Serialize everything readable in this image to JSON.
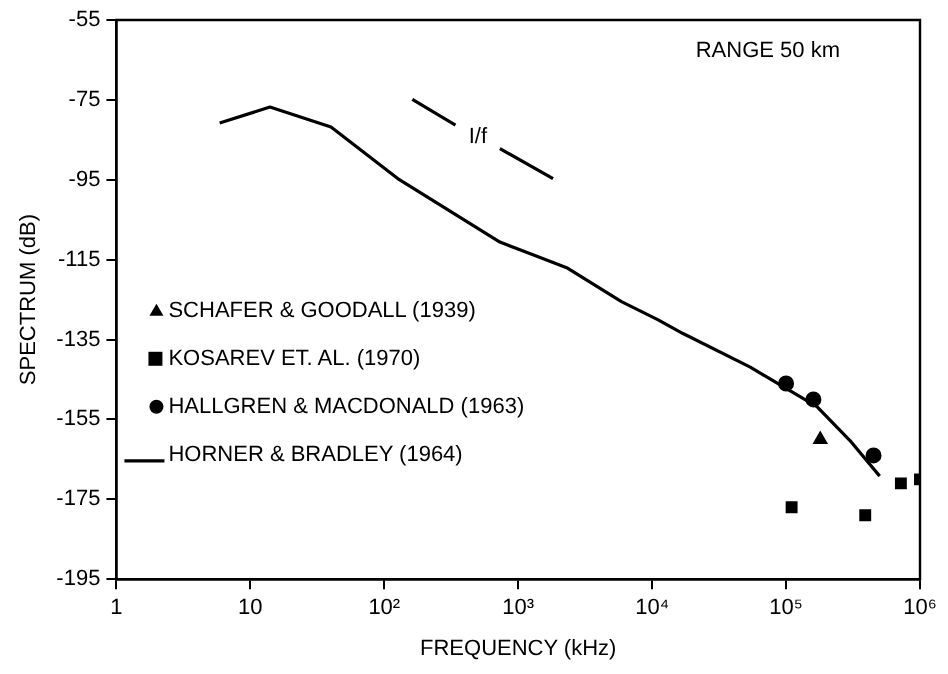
{
  "chart_data": {
    "type": "scatter",
    "xlabel": "FREQUENCY (kHz)",
    "ylabel": "SPECTRUM (dB)",
    "log": "x",
    "xlim": [
      1,
      1000000
    ],
    "xticks": [
      1,
      10,
      {
        "value": 100,
        "label": "10²"
      },
      {
        "value": 1000,
        "label": "10³"
      },
      {
        "value": 10000,
        "label": "10⁴"
      },
      {
        "value": 100000,
        "label": "10⁵"
      },
      {
        "value": 1000000,
        "label": "10⁶"
      }
    ],
    "ylim": [
      -195,
      -55
    ],
    "yticks": [
      -195,
      -175,
      -155,
      -135,
      -115,
      -95,
      -75,
      -55
    ],
    "grid": false,
    "legend": "left",
    "series": [
      {
        "name": "SCHAFER & GOODALL (1939)",
        "type": "scatter",
        "marker": "triangle",
        "color": "#000000",
        "x": [
          180000
        ],
        "values": [
          -160
        ]
      },
      {
        "name": "KOSAREV ET. AL. (1970)",
        "type": "scatter",
        "marker": "square",
        "color": "#000000",
        "x": [
          110000,
          390000,
          720000,
          1000000
        ],
        "values": [
          -177,
          -179,
          -171,
          -170
        ]
      },
      {
        "name": "HALLGREN & MACDONALD (1963)",
        "type": "scatter",
        "marker": "circle",
        "color": "#000000",
        "x": [
          100000,
          160000,
          450000
        ],
        "values": [
          -146,
          -150,
          -164
        ]
      },
      {
        "name": "HORNER & BRADLEY (1964)",
        "type": "line",
        "marker": "none",
        "color": "#000000",
        "x": [
          5.9,
          14,
          40,
          126,
          730,
          2300,
          5900,
          11000,
          17000,
          54000,
          170000,
          300000,
          500000
        ],
        "values": [
          -80.8,
          -76.8,
          -81.8,
          -94.7,
          -110.6,
          -117,
          -125.5,
          -130,
          -133.5,
          -141.9,
          -151.8,
          -160.3,
          -169.2
        ]
      },
      {
        "type": "line",
        "marker": "none",
        "color": "#000000",
        "x": [
          162,
          340,
          500,
          730,
          1820
        ],
        "values": [
          -74.9,
          -81.3,
          null,
          -87.2,
          -94.7
        ]
      }
    ],
    "annotations": [
      "RANGE 50 km",
      "I/f"
    ]
  }
}
